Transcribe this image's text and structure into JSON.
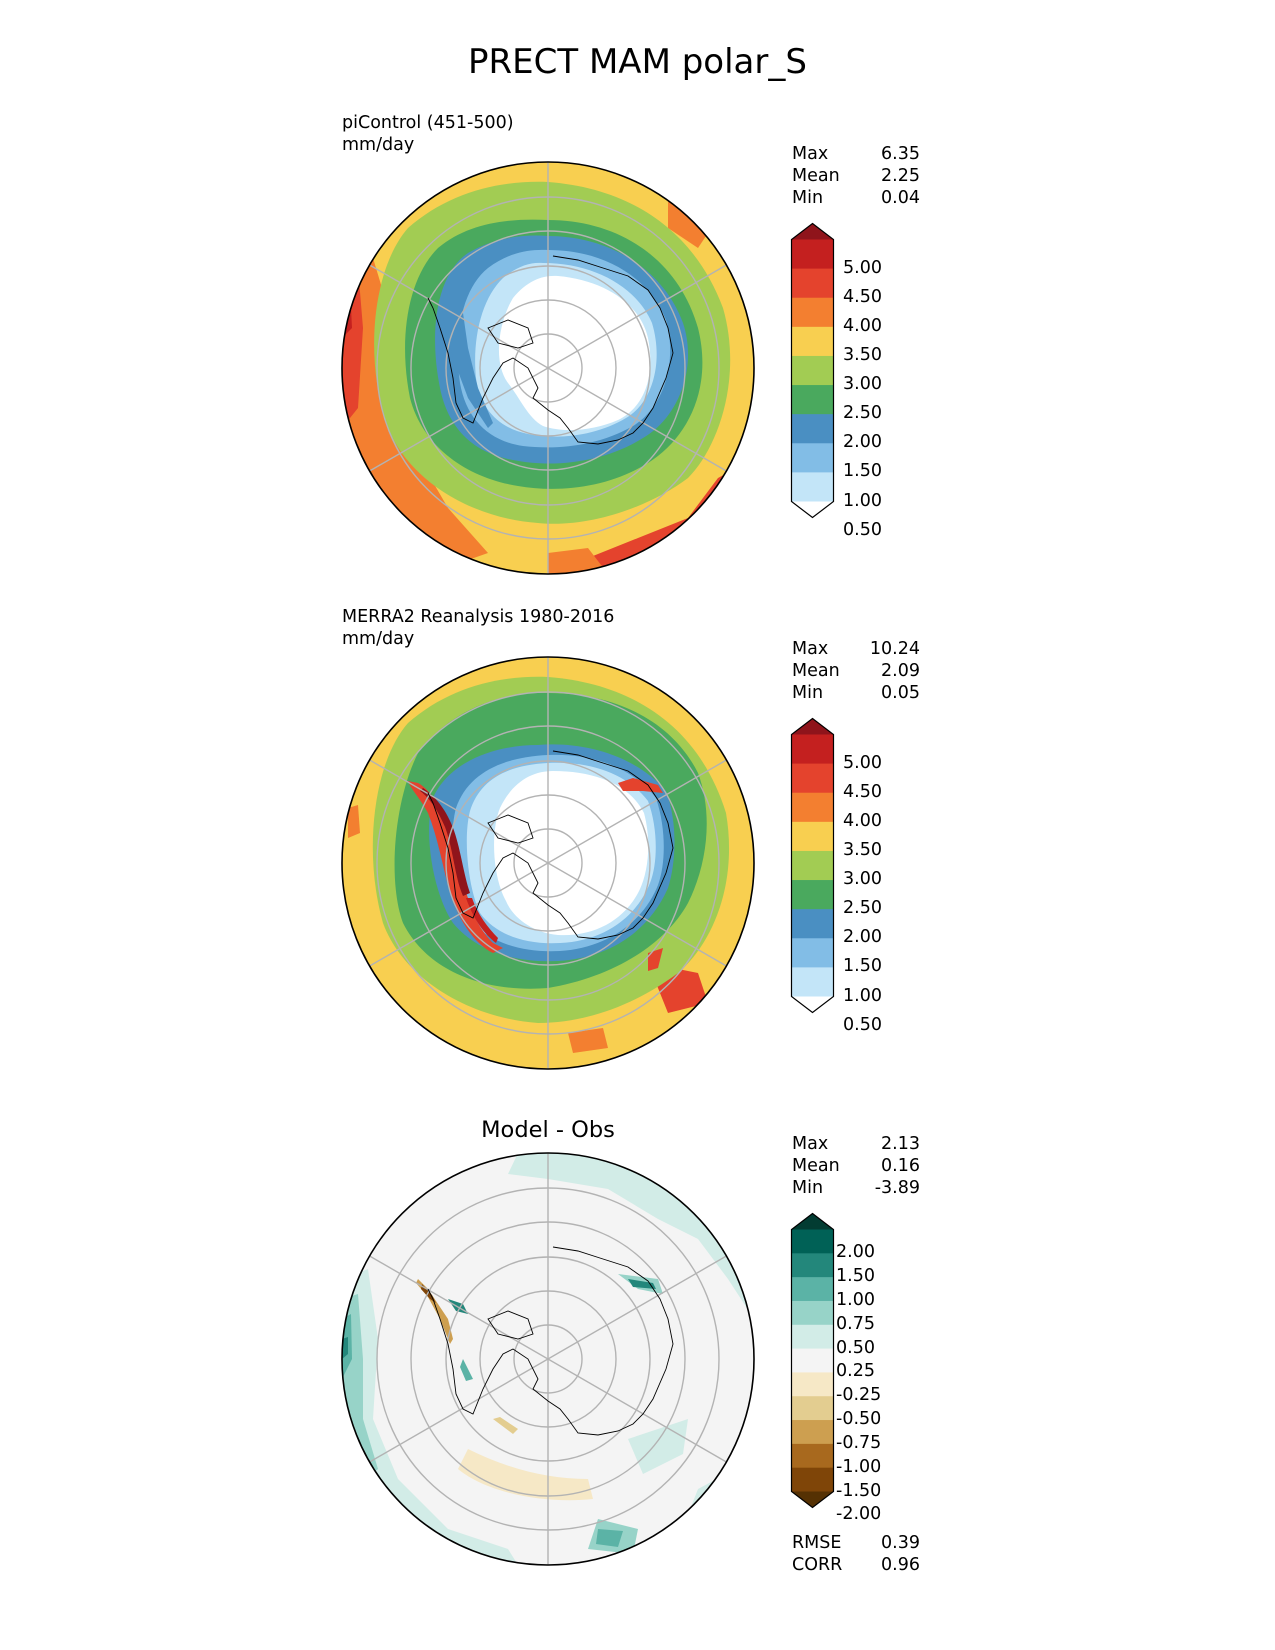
{
  "title": "PRECT MAM polar_S",
  "panels": [
    {
      "id": "test",
      "label_lines": [
        "piControl (451-500)",
        "mm/day"
      ],
      "stats": [
        [
          "Max",
          "6.35"
        ],
        [
          "Mean",
          "2.25"
        ],
        [
          "Min",
          "0.04"
        ]
      ],
      "colorbar": {
        "ticks": [
          "5.00",
          "4.50",
          "4.00",
          "3.50",
          "3.00",
          "2.50",
          "2.00",
          "1.50",
          "1.00",
          "0.50"
        ],
        "colors_top_to_bottom": [
          "#8f141b",
          "#c4201f",
          "#e4432d",
          "#f37f30",
          "#f8cf50",
          "#a2cc53",
          "#4aa95e",
          "#4a8fc2",
          "#82bde6",
          "#c3e5f8",
          "#ffffff"
        ]
      }
    },
    {
      "id": "ref",
      "label_lines": [
        "MERRA2 Reanalysis 1980-2016",
        "mm/day"
      ],
      "stats": [
        [
          "Max",
          "10.24"
        ],
        [
          "Mean",
          "2.09"
        ],
        [
          "Min",
          "0.05"
        ]
      ],
      "colorbar": {
        "ticks": [
          "5.00",
          "4.50",
          "4.00",
          "3.50",
          "3.00",
          "2.50",
          "2.00",
          "1.50",
          "1.00",
          "0.50"
        ],
        "colors_top_to_bottom": [
          "#8f141b",
          "#c4201f",
          "#e4432d",
          "#f37f30",
          "#f8cf50",
          "#a2cc53",
          "#4aa95e",
          "#4a8fc2",
          "#82bde6",
          "#c3e5f8",
          "#ffffff"
        ]
      }
    },
    {
      "id": "diff",
      "title": "Model - Obs",
      "stats": [
        [
          "Max",
          "2.13"
        ],
        [
          "Mean",
          "0.16"
        ],
        [
          "Min",
          "-3.89"
        ]
      ],
      "colorbar": {
        "ticks": [
          "2.00",
          "1.50",
          "1.00",
          "0.75",
          "0.50",
          "0.25",
          "-0.25",
          "-0.50",
          "-0.75",
          "-1.00",
          "-1.50",
          "-2.00"
        ],
        "colors_top_to_bottom": [
          "#023c32",
          "#006156",
          "#23877b",
          "#5bb3a6",
          "#97d3c8",
          "#d2ece7",
          "#f4f4f4",
          "#f6e8c6",
          "#e3cd90",
          "#cd9f50",
          "#a8691e",
          "#7f4508",
          "#553103"
        ]
      },
      "metrics": [
        [
          "RMSE",
          "0.39"
        ],
        [
          "CORR",
          "0.96"
        ]
      ]
    }
  ]
}
